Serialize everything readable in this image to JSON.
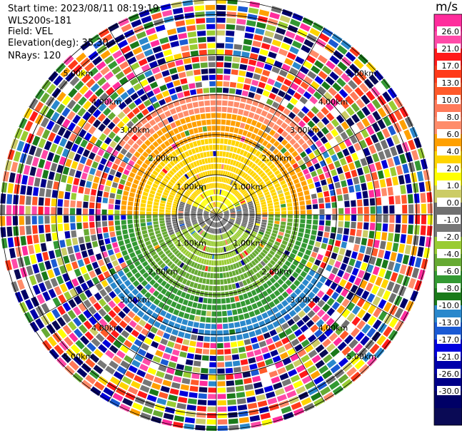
{
  "header": {
    "start_time": "Start time: 2023/08/11 08:19:19",
    "radar": "WLS200s-181",
    "field": "Field: VEL",
    "elevation": "Elevation(deg): 35.30",
    "nrays": "NRays: 120"
  },
  "chart_data": {
    "type": "heatmap",
    "subtype": "polar-ppi",
    "range_rings_km": [
      1.0,
      2.0,
      3.0,
      4.0,
      5.0
    ],
    "max_range_km": 5.4,
    "ring_labels": [
      "1.00km",
      "2.00km",
      "3.00km",
      "4.00km",
      "5.00km"
    ],
    "nrays": 120,
    "colorbar": {
      "title": "m/s",
      "tick_labels": [
        "26.0",
        "21.0",
        "17.0",
        "13.0",
        "10.0",
        "8.0",
        "6.0",
        "4.0",
        "2.0",
        "1.0",
        "0.0",
        "-1.0",
        "-2.0",
        "-4.0",
        "-6.0",
        "-8.0",
        "-10.0",
        "-13.0",
        "-17.0",
        "-21.0",
        "-26.0",
        "-30.0"
      ],
      "colors": [
        "#ff2c9c",
        "#ff4aa8",
        "#ff1a1a",
        "#ff3a1a",
        "#ff5a2a",
        "#ff7a5a",
        "#ff8c6a",
        "#ffa000",
        "#ffd400",
        "#ffff00",
        "#cccc66",
        "#707070",
        "#777777",
        "#99cc33",
        "#66aa33",
        "#339933",
        "#1a7a1a",
        "#2a88cc",
        "#1a5ad4",
        "#0000dd",
        "#0000aa",
        "#000088",
        "#000066",
        "#0a0a55"
      ]
    }
  }
}
